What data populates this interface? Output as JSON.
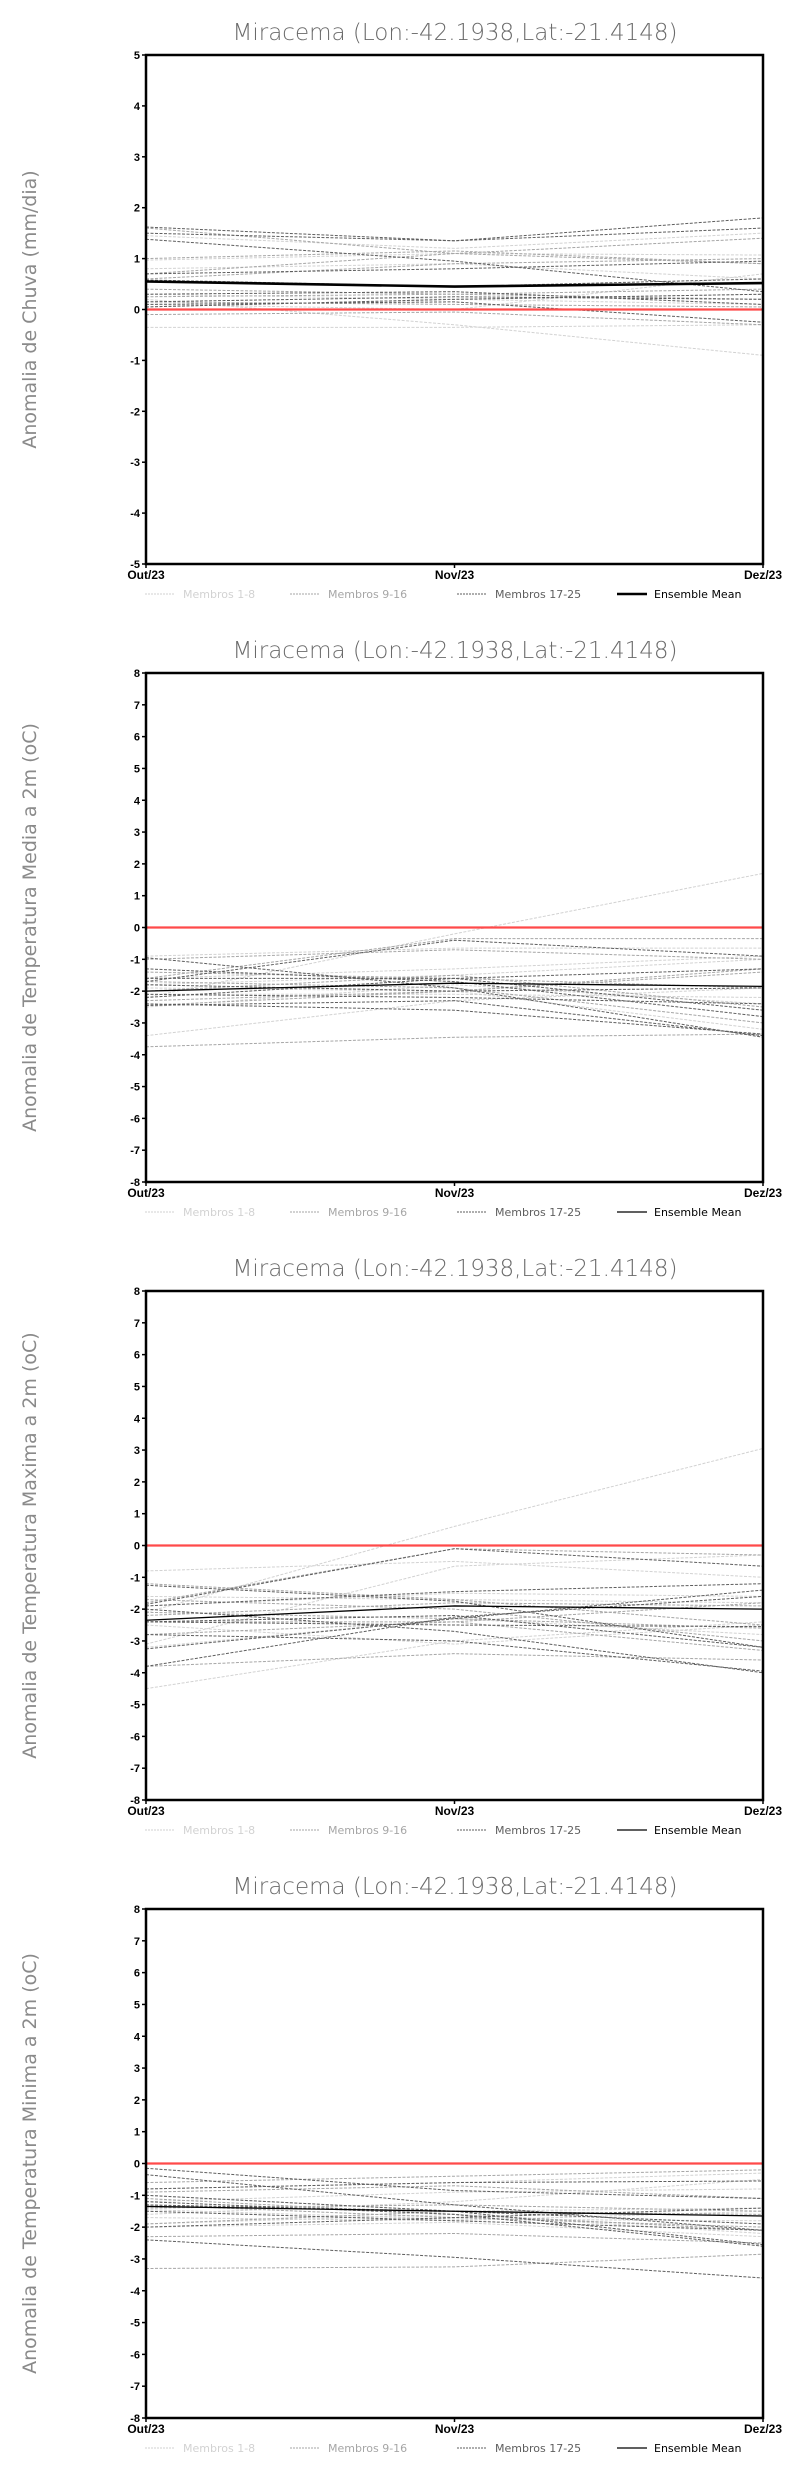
{
  "colors": {
    "members_1_8": "#d2d2d2",
    "members_9_16": "#a6a6a6",
    "members_17_25": "#5e5e5e",
    "mean": "#000000",
    "zero": "#ff4a4a"
  },
  "legend": [
    "Membros 1-8",
    "Membros 9-16",
    "Membros 17-25",
    "Ensemble Mean"
  ],
  "chart_data": [
    {
      "type": "line",
      "title": "Miracema (Lon:-42.1938,Lat:-21.4148)",
      "ylabel": "Anomalia de Chuva (mm/dia)",
      "categories": [
        "Out/23",
        "Nov/23",
        "Dez/23"
      ],
      "ylim": [
        -5,
        5
      ],
      "yticks": [
        -5,
        -4,
        -3,
        -2,
        -1,
        0,
        1,
        2,
        3,
        4,
        5
      ],
      "mean_width": "thick",
      "ensemble_mean": [
        0.55,
        0.45,
        0.52
      ],
      "members": [
        [
          0.97,
          1.1,
          1.07
        ],
        [
          0.2,
          -0.3,
          -0.9
        ],
        [
          -0.35,
          -0.35,
          -0.3
        ],
        [
          1.45,
          1.2,
          1.5
        ],
        [
          0.3,
          0.2,
          0.1
        ],
        [
          0.1,
          0.0,
          0.7
        ],
        [
          0.8,
          0.9,
          0.6
        ],
        [
          0.05,
          0.2,
          0.3
        ],
        [
          1.6,
          1.1,
          1.4
        ],
        [
          0.6,
          0.9,
          1.0
        ],
        [
          0.4,
          0.3,
          0.2
        ],
        [
          -0.1,
          -0.05,
          -0.3
        ],
        [
          0.15,
          0.1,
          0.05
        ],
        [
          0.7,
          1.1,
          0.9
        ],
        [
          0.25,
          0.3,
          0.4
        ],
        [
          1.0,
          1.15,
          0.9
        ],
        [
          1.62,
          1.35,
          1.6
        ],
        [
          1.5,
          1.35,
          1.8
        ],
        [
          1.38,
          0.95,
          0.35
        ],
        [
          0.7,
          0.8,
          0.95
        ],
        [
          0.15,
          0.25,
          0.2
        ],
        [
          0.1,
          0.15,
          -0.25
        ],
        [
          0.58,
          0.45,
          0.6
        ],
        [
          0.3,
          0.35,
          0.1
        ],
        [
          0.05,
          0.2,
          0.3
        ]
      ]
    },
    {
      "type": "line",
      "title": "Miracema (Lon:-42.1938,Lat:-21.4148)",
      "ylabel": "Anomalia de Temperatura Media a 2m (oC)",
      "categories": [
        "Out/23",
        "Nov/23",
        "Dez/23"
      ],
      "ylim": [
        -8,
        8
      ],
      "yticks": [
        -8,
        -7,
        -6,
        -5,
        -4,
        -3,
        -2,
        -1,
        0,
        1,
        2,
        3,
        4,
        5,
        6,
        7,
        8
      ],
      "mean_width": "thin",
      "ensemble_mean": [
        -2.0,
        -1.75,
        -1.85
      ],
      "members": [
        [
          -3.4,
          -2.3,
          -1.9
        ],
        [
          -2.2,
          -0.2,
          1.7
        ],
        [
          -0.9,
          -0.65,
          -0.65
        ],
        [
          -1.8,
          -1.5,
          -1.0
        ],
        [
          -2.5,
          -1.8,
          -2.4
        ],
        [
          -1.9,
          -2.0,
          -3.2
        ],
        [
          -1.6,
          -1.3,
          -0.9
        ],
        [
          -2.1,
          -2.1,
          -2.2
        ],
        [
          -1.6,
          -0.35,
          -0.35
        ],
        [
          -3.75,
          -3.45,
          -3.35
        ],
        [
          -2.3,
          -2.0,
          -1.3
        ],
        [
          -1.4,
          -1.6,
          -1.9
        ],
        [
          -2.0,
          -1.5,
          -2.5
        ],
        [
          -1.7,
          -1.9,
          -3.0
        ],
        [
          -2.45,
          -2.0,
          -1.4
        ],
        [
          -1.0,
          -0.7,
          -1.0
        ],
        [
          -1.7,
          -0.4,
          -0.9
        ],
        [
          -0.95,
          -1.9,
          -3.45
        ],
        [
          -2.4,
          -2.6,
          -3.35
        ],
        [
          -1.3,
          -1.7,
          -2.8
        ],
        [
          -2.1,
          -2.2,
          -2.4
        ],
        [
          -1.6,
          -1.6,
          -1.3
        ],
        [
          -2.45,
          -2.3,
          -3.4
        ],
        [
          -1.8,
          -2.0,
          -1.9
        ],
        [
          -2.2,
          -1.6,
          -2.6
        ]
      ]
    },
    {
      "type": "line",
      "title": "Miracema (Lon:-42.1938,Lat:-21.4148)",
      "ylabel": "Anomalia de Temperatura Maxima a 2m (oC)",
      "categories": [
        "Out/23",
        "Nov/23",
        "Dez/23"
      ],
      "ylim": [
        -8,
        8
      ],
      "yticks": [
        -8,
        -7,
        -6,
        -5,
        -4,
        -3,
        -2,
        -1,
        0,
        1,
        2,
        3,
        4,
        5,
        6,
        7,
        8
      ],
      "mean_width": "thin",
      "ensemble_mean": [
        -2.35,
        -1.9,
        -2.0
      ],
      "members": [
        [
          -4.5,
          -3.0,
          -2.4
        ],
        [
          -2.1,
          0.6,
          3.05
        ],
        [
          -0.8,
          -0.5,
          -1.0
        ],
        [
          -3.1,
          -0.65,
          -0.3
        ],
        [
          -1.6,
          -1.7,
          -1.8
        ],
        [
          -2.5,
          -3.1,
          -2.5
        ],
        [
          -3.2,
          -2.3,
          -2.8
        ],
        [
          -1.9,
          -1.5,
          -1.6
        ],
        [
          -1.8,
          -0.1,
          -0.3
        ],
        [
          -3.8,
          -3.4,
          -3.6
        ],
        [
          -2.8,
          -2.4,
          -1.8
        ],
        [
          -1.7,
          -2.0,
          -3.0
        ],
        [
          -2.1,
          -2.3,
          -2.6
        ],
        [
          -1.2,
          -1.7,
          -2.5
        ],
        [
          -2.4,
          -2.4,
          -3.3
        ],
        [
          -2.2,
          -1.8,
          -1.9
        ],
        [
          -1.85,
          -0.1,
          -0.65
        ],
        [
          -3.25,
          -2.3,
          -1.4
        ],
        [
          -3.8,
          -2.25,
          -1.6
        ],
        [
          -1.25,
          -1.75,
          -3.2
        ],
        [
          -2.8,
          -3.0,
          -3.95
        ],
        [
          -2.4,
          -2.5,
          -2.55
        ],
        [
          -1.9,
          -1.45,
          -1.2
        ],
        [
          -2.0,
          -2.7,
          -4.0
        ],
        [
          -2.4,
          -2.2,
          -3.2
        ]
      ]
    },
    {
      "type": "line",
      "title": "Miracema (Lon:-42.1938,Lat:-21.4148)",
      "ylabel": "Anomalia de Temperatura Minima a 2m (oC)",
      "categories": [
        "Out/23",
        "Nov/23",
        "Dez/23"
      ],
      "ylim": [
        -8,
        8
      ],
      "yticks": [
        -8,
        -7,
        -6,
        -5,
        -4,
        -3,
        -2,
        -1,
        0,
        1,
        2,
        3,
        4,
        5,
        6,
        7,
        8
      ],
      "mean_width": "thin",
      "ensemble_mean": [
        -1.35,
        -1.5,
        -1.65
      ],
      "members": [
        [
          -2.0,
          -1.85,
          -2.3
        ],
        [
          -0.8,
          -0.6,
          -0.3
        ],
        [
          -1.6,
          -1.2,
          -0.5
        ],
        [
          -1.45,
          -1.75,
          -1.8
        ],
        [
          -1.0,
          -1.5,
          -1.4
        ],
        [
          -1.9,
          -1.6,
          -2.2
        ],
        [
          -1.2,
          -0.9,
          -0.8
        ],
        [
          -1.7,
          -1.8,
          -1.5
        ],
        [
          -3.3,
          -3.25,
          -2.85
        ],
        [
          -0.6,
          -0.4,
          -0.2
        ],
        [
          -2.3,
          -2.2,
          -2.5
        ],
        [
          -1.1,
          -1.6,
          -2.1
        ],
        [
          -1.4,
          -1.3,
          -1.5
        ],
        [
          -0.9,
          -0.7,
          -1.1
        ],
        [
          -1.9,
          -1.5,
          -1.6
        ],
        [
          -1.3,
          -1.7,
          -2.0
        ],
        [
          -0.15,
          -0.85,
          -1.1
        ],
        [
          -0.35,
          -1.3,
          -2.1
        ],
        [
          -2.4,
          -2.95,
          -3.6
        ],
        [
          -1.0,
          -1.5,
          -2.55
        ],
        [
          -1.2,
          -1.6,
          -2.6
        ],
        [
          -0.8,
          -0.6,
          -0.55
        ],
        [
          -1.5,
          -1.8,
          -2.1
        ],
        [
          -2.0,
          -1.7,
          -1.4
        ],
        [
          -1.3,
          -1.5,
          -1.9
        ]
      ]
    }
  ]
}
